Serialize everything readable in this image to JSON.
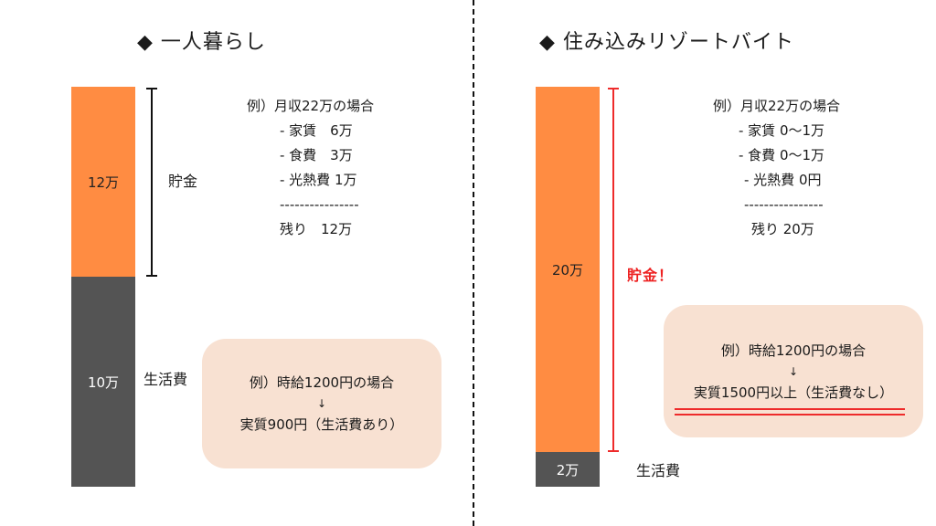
{
  "left": {
    "title": "◆ 一人暮らし",
    "bar_top_value": "12万",
    "bar_bottom_value": "10万",
    "saving_label": "貯金",
    "living_label": "生活費",
    "example_lines": [
      "例）月収22万の場合",
      "- 家賃　6万",
      "- 食費　3万",
      "- 光熱費 1万",
      "----------------",
      "残り　12万"
    ],
    "box_line1": "例）時給1200円の場合",
    "box_arrow": "↓",
    "box_line2": "実質900円（生活費あり）"
  },
  "right": {
    "title": "◆ 住み込みリゾートバイト",
    "bar_top_value": "20万",
    "bar_bottom_value": "2万",
    "saving_label": "貯金！",
    "living_label": "生活費",
    "example_lines": [
      "例）月収22万の場合",
      "- 家賃 0〜1万",
      "- 食費 0〜1万",
      "- 光熱費 0円",
      "----------------",
      "残り 20万"
    ],
    "box_line1": "例）時給1200円の場合",
    "box_arrow": "↓",
    "box_line2": "実質1500円以上（生活費なし）"
  },
  "colors": {
    "orange": "#ff8c42",
    "dark": "#545454",
    "box_bg": "#f8e1d2",
    "accent_red": "#ee2b2b"
  }
}
